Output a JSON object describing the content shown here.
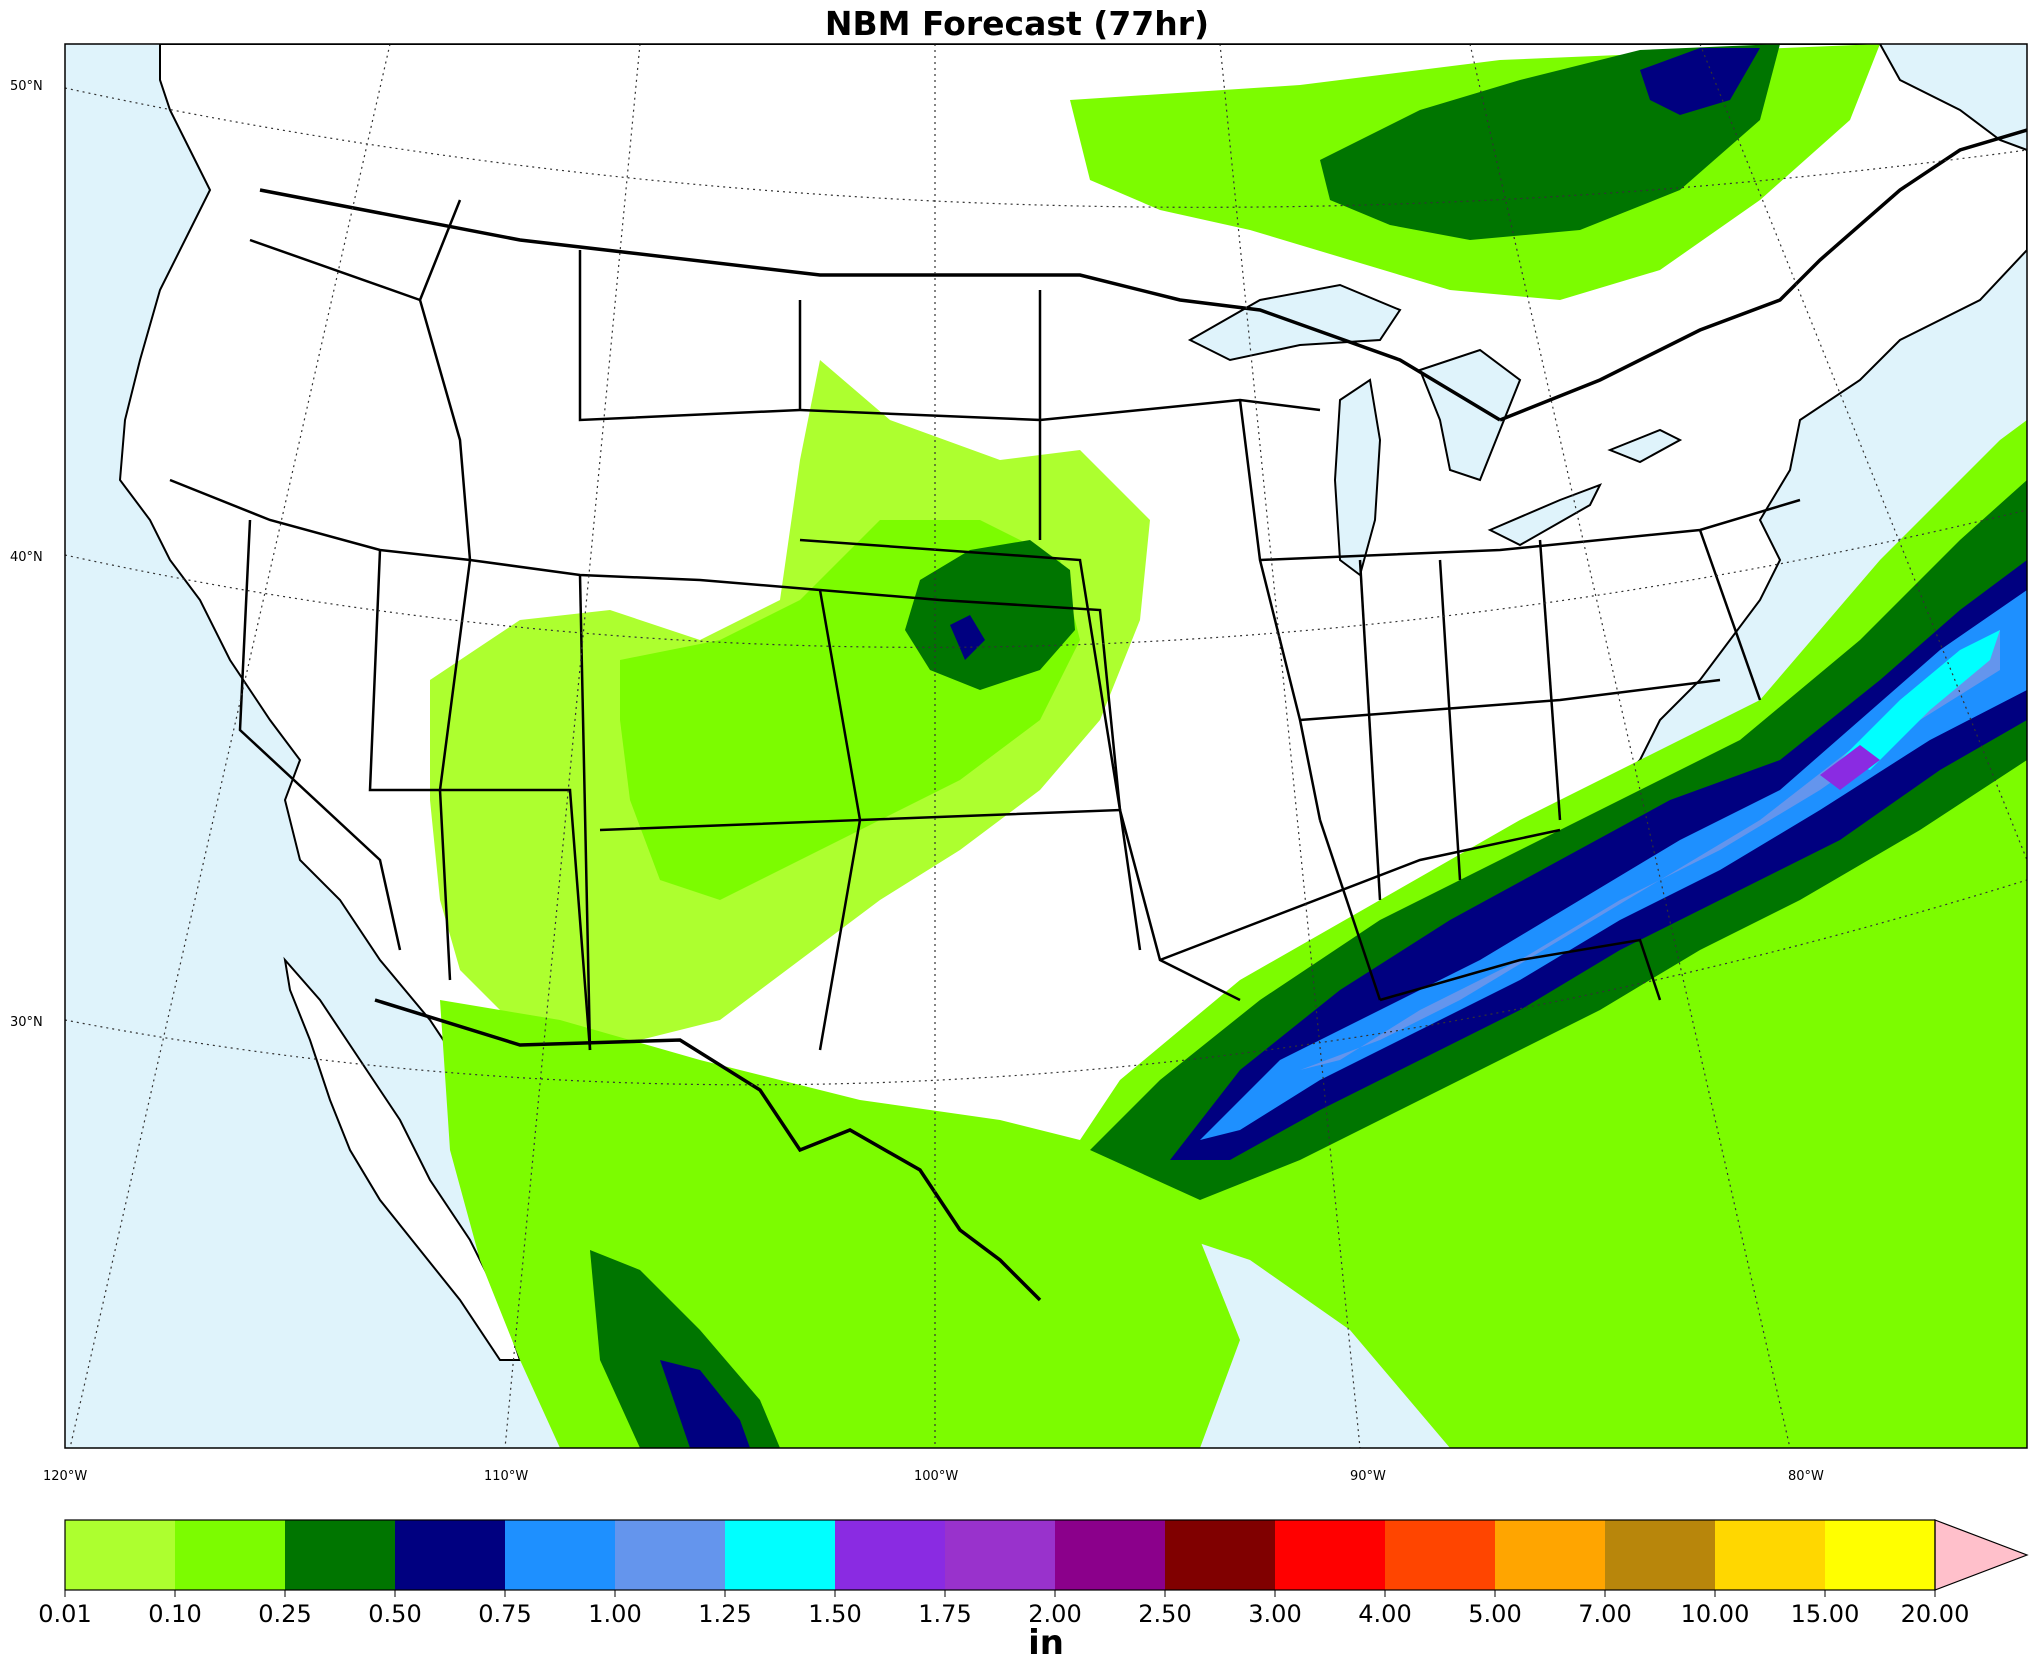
{
  "title": "NBM Forecast (77hr)",
  "colors": {
    "ocean": "#dff3fb",
    "land": "#ffffff",
    "bin_001_010": "#adff2f",
    "bin_010_025": "#7cfc00",
    "bin_025_050": "#007500",
    "bin_050_075": "#000080",
    "bin_075_100": "#1e90ff",
    "bin_100_125": "#6495ed",
    "bin_125_150": "#00ffff",
    "bin_150_175": "#8a2be2",
    "over_20": "#ffc0cb"
  },
  "latitude_labels": [
    "50°N",
    "40°N",
    "30°N"
  ],
  "longitude_labels": [
    "120°W",
    "110°W",
    "100°W",
    "90°W",
    "80°W"
  ],
  "colorbar": {
    "unit": "in",
    "ticks": [
      "0.01",
      "0.10",
      "0.25",
      "0.50",
      "0.75",
      "1.00",
      "1.25",
      "1.50",
      "1.75",
      "2.00",
      "2.50",
      "3.00",
      "4.00",
      "5.00",
      "7.00",
      "10.00",
      "15.00",
      "20.00"
    ],
    "colors": [
      "#adff2f",
      "#7cfc00",
      "#007500",
      "#000080",
      "#1e90ff",
      "#6495ed",
      "#00ffff",
      "#8a2be2",
      "#9932cc",
      "#8b008b",
      "#800000",
      "#ff0000",
      "#ff4500",
      "#ffa500",
      "#b8860b",
      "#ffd700",
      "#ffff00"
    ],
    "extend_color": "#ffc0cb"
  }
}
